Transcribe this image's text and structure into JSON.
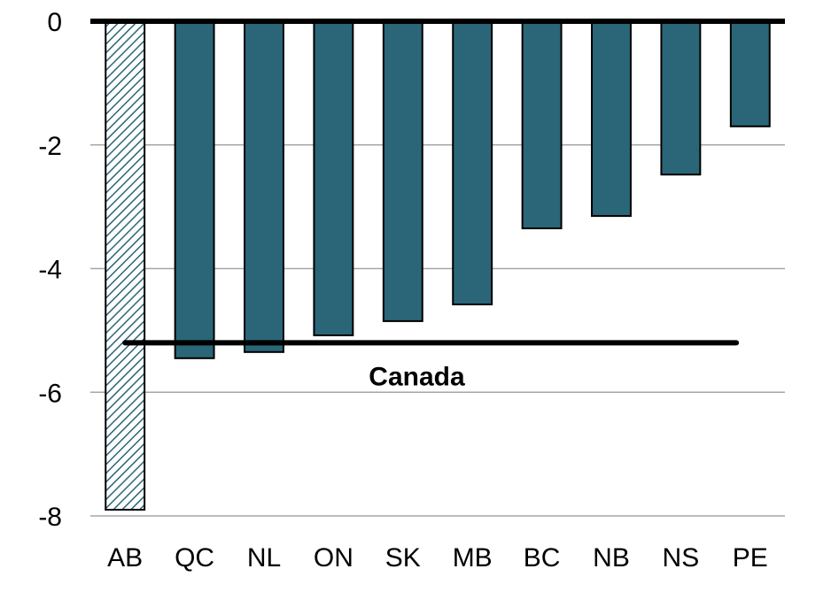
{
  "chart_data": {
    "type": "bar",
    "categories": [
      "AB",
      "QC",
      "NL",
      "ON",
      "SK",
      "MB",
      "BC",
      "NB",
      "NS",
      "PE"
    ],
    "values": [
      -7.9,
      -5.45,
      -5.35,
      -5.08,
      -4.85,
      -4.58,
      -3.35,
      -3.15,
      -2.48,
      -1.7
    ],
    "highlight_index": 0,
    "title": "",
    "xlabel": "",
    "ylabel": "",
    "ylim": [
      -8,
      0
    ],
    "yticks": [
      0,
      -2,
      -4,
      -6,
      -8
    ],
    "grid": true,
    "colors": {
      "bar": "#2a6677",
      "bar_stroke": "#000000",
      "highlight_hatch": "#2a6677",
      "grid": "#a6a6a6",
      "zero_line": "#000000",
      "reference_line": "#000000"
    },
    "reference_line": {
      "label": "Canada",
      "value": -5.2
    }
  }
}
